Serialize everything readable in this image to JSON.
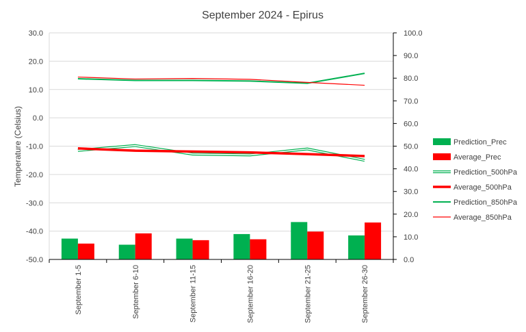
{
  "chart_data": {
    "type": "bar",
    "title": "September 2024 - Epirus",
    "ylabel": "Temperature (Celsius)",
    "categories": [
      "September 1-5",
      "September 6-10",
      "September 11-15",
      "September 16-20",
      "September 21-25",
      "September 26-30"
    ],
    "ylim": [
      -50,
      30
    ],
    "y_ticks": [
      "-50.0",
      "-40.0",
      "-30.0",
      "-20.0",
      "-10.0",
      "0.0",
      "10.0",
      "20.0",
      "30.0"
    ],
    "y2lim": [
      0,
      100
    ],
    "y2_ticks": [
      "0.0",
      "10.0",
      "20.0",
      "30.0",
      "40.0",
      "50.0",
      "60.0",
      "70.0",
      "80.0",
      "90.0",
      "100.0"
    ],
    "grid": true,
    "legend_position": "right",
    "colors": {
      "green": "#00b050",
      "red": "#ff0000",
      "axis": "#000000",
      "grid": "#d9d9d9"
    },
    "series": [
      {
        "name": "Prediction_Prec",
        "kind": "bar",
        "axis": "secondary",
        "color": "#00b050",
        "values": [
          9.2,
          6.5,
          9.2,
          11.2,
          16.5,
          10.6
        ]
      },
      {
        "name": "Average_Prec",
        "kind": "bar",
        "axis": "secondary",
        "color": "#ff0000",
        "values": [
          7.0,
          11.5,
          8.5,
          8.9,
          12.3,
          16.3
        ]
      },
      {
        "name": "Prediction_500hPa",
        "kind": "double-line",
        "axis": "primary",
        "color": "#00b050",
        "values": [
          -11.5,
          -9.8,
          -12.8,
          -13.1,
          -11.0,
          -15.0
        ]
      },
      {
        "name": "Average_500hPa",
        "kind": "thick-line",
        "axis": "primary",
        "color": "#ff0000",
        "values": [
          -10.8,
          -11.6,
          -11.9,
          -12.2,
          -12.8,
          -13.5
        ]
      },
      {
        "name": "Prediction_850hPa",
        "kind": "line",
        "axis": "primary",
        "color": "#00b050",
        "values": [
          13.8,
          13.2,
          13.2,
          13.0,
          12.2,
          15.7
        ]
      },
      {
        "name": "Average_850hPa",
        "kind": "thin-line",
        "axis": "primary",
        "color": "#ff0000",
        "values": [
          14.4,
          13.7,
          13.9,
          13.6,
          12.5,
          11.5
        ]
      }
    ]
  }
}
